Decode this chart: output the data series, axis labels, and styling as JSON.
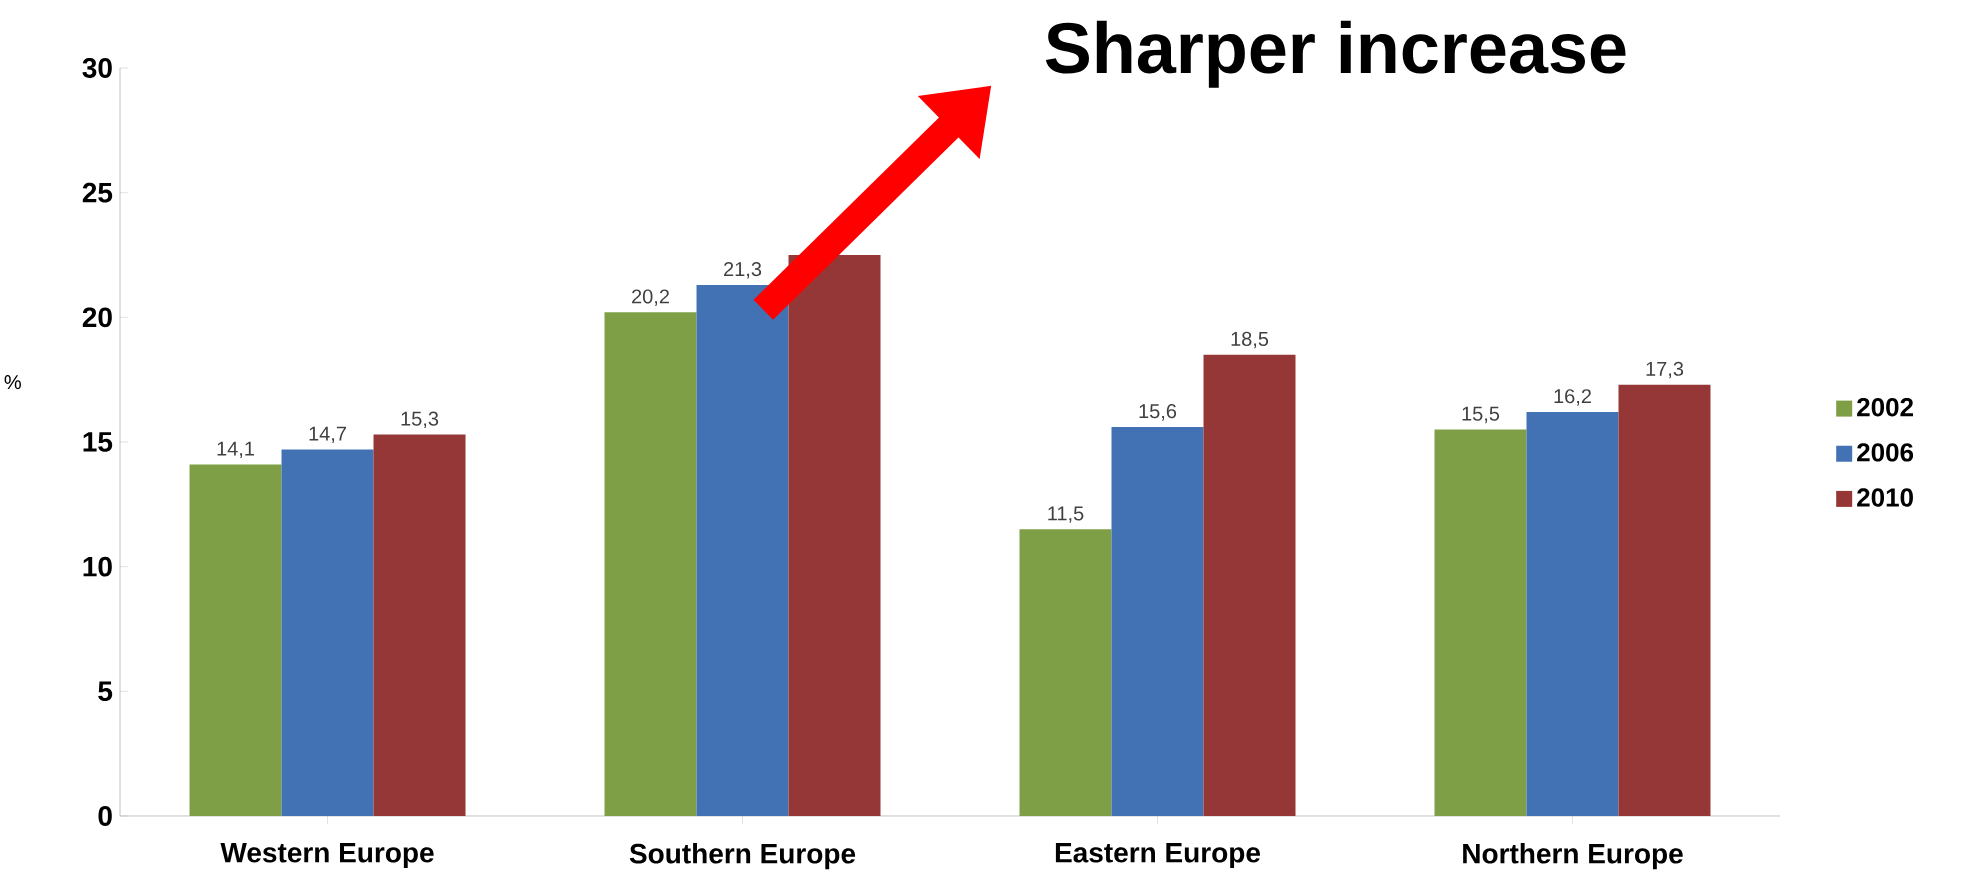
{
  "chart_data": {
    "type": "bar",
    "ylabel": "%",
    "categories": [
      "Western Europe",
      "Southern  Europe",
      "Eastern  Europe",
      "Northern  Europe"
    ],
    "series": [
      {
        "name": "2002",
        "color": "#7f9f46",
        "values": [
          14.1,
          20.2,
          11.5,
          15.5
        ],
        "value_labels": [
          "14,1",
          "20,2",
          "11,5",
          "15,5"
        ]
      },
      {
        "name": "2006",
        "color": "#4272b3",
        "values": [
          14.7,
          21.3,
          15.6,
          16.2
        ],
        "value_labels": [
          "14,7",
          "21,3",
          "15,6",
          "16,2"
        ]
      },
      {
        "name": "2010",
        "color": "#953736",
        "values": [
          15.3,
          22.5,
          18.5,
          17.3
        ],
        "value_labels": [
          "15,3",
          null,
          "18,5",
          "17,3"
        ]
      }
    ],
    "ylim": [
      0,
      30
    ],
    "yticks": [
      0,
      5,
      10,
      15,
      20,
      25,
      30
    ],
    "legend": "right",
    "grid": false,
    "annotations": [
      "Sharper increase"
    ]
  }
}
